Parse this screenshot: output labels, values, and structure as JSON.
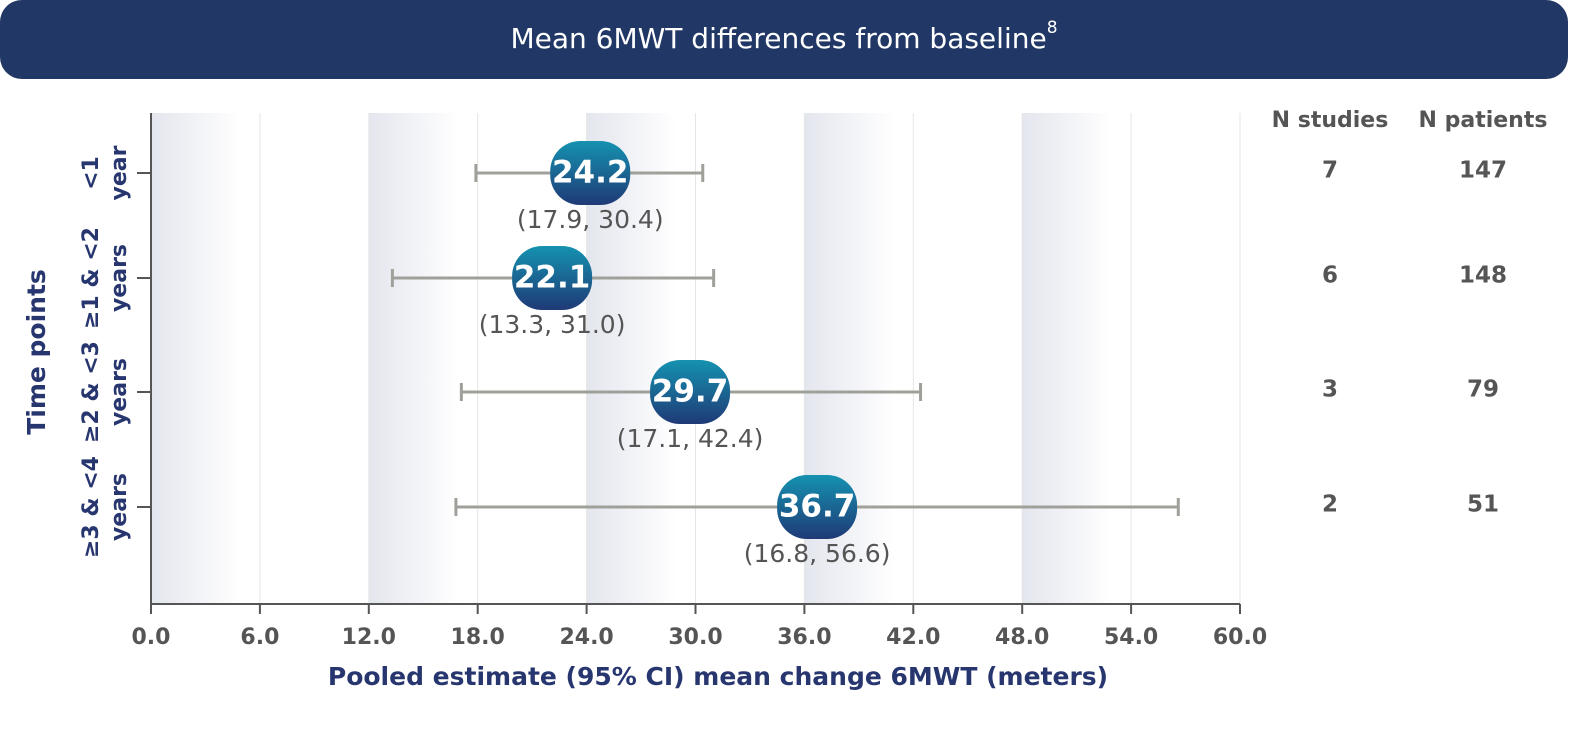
{
  "chart_data": {
    "type": "forest",
    "title": "Mean 6MWT differences from baseline",
    "title_superscript": "8",
    "y_label": "Time points",
    "x_label": "Pooled estimate (95% CI) mean change 6MWT (meters)",
    "categories": [
      [
        "<1",
        "year"
      ],
      [
        "≥1 & <2",
        "years"
      ],
      [
        "≥2 & <3",
        "years"
      ],
      [
        "≥3 & <4",
        "years"
      ]
    ],
    "values": [
      24.2,
      22.1,
      29.7,
      36.7
    ],
    "lower": [
      17.9,
      13.3,
      17.1,
      16.8
    ],
    "upper": [
      30.4,
      31.0,
      42.4,
      56.6
    ],
    "ci_labels": [
      "(17.9, 30.4)",
      "(13.3, 31.0)",
      "(17.1, 42.4)",
      "(16.8, 56.6)"
    ],
    "xlim": [
      0,
      60
    ],
    "xticks": [
      {
        "value": 0,
        "label": "0.0"
      },
      {
        "value": 6,
        "label": "6.0"
      },
      {
        "value": 12,
        "label": "12.0"
      },
      {
        "value": 18,
        "label": "18.0"
      },
      {
        "value": 24,
        "label": "24.0"
      },
      {
        "value": 30,
        "label": "30.0"
      },
      {
        "value": 36,
        "label": "36.0"
      },
      {
        "value": 42,
        "label": "42.0"
      },
      {
        "value": 48,
        "label": "48.0"
      },
      {
        "value": 54,
        "label": "54.0"
      },
      {
        "value": 60,
        "label": "60.0"
      }
    ],
    "grid": true,
    "table": [
      {
        "header": "N studies",
        "values": [
          7,
          6,
          3,
          2
        ]
      },
      {
        "header": "N patients",
        "values": [
          147,
          148,
          79,
          51
        ]
      }
    ]
  }
}
